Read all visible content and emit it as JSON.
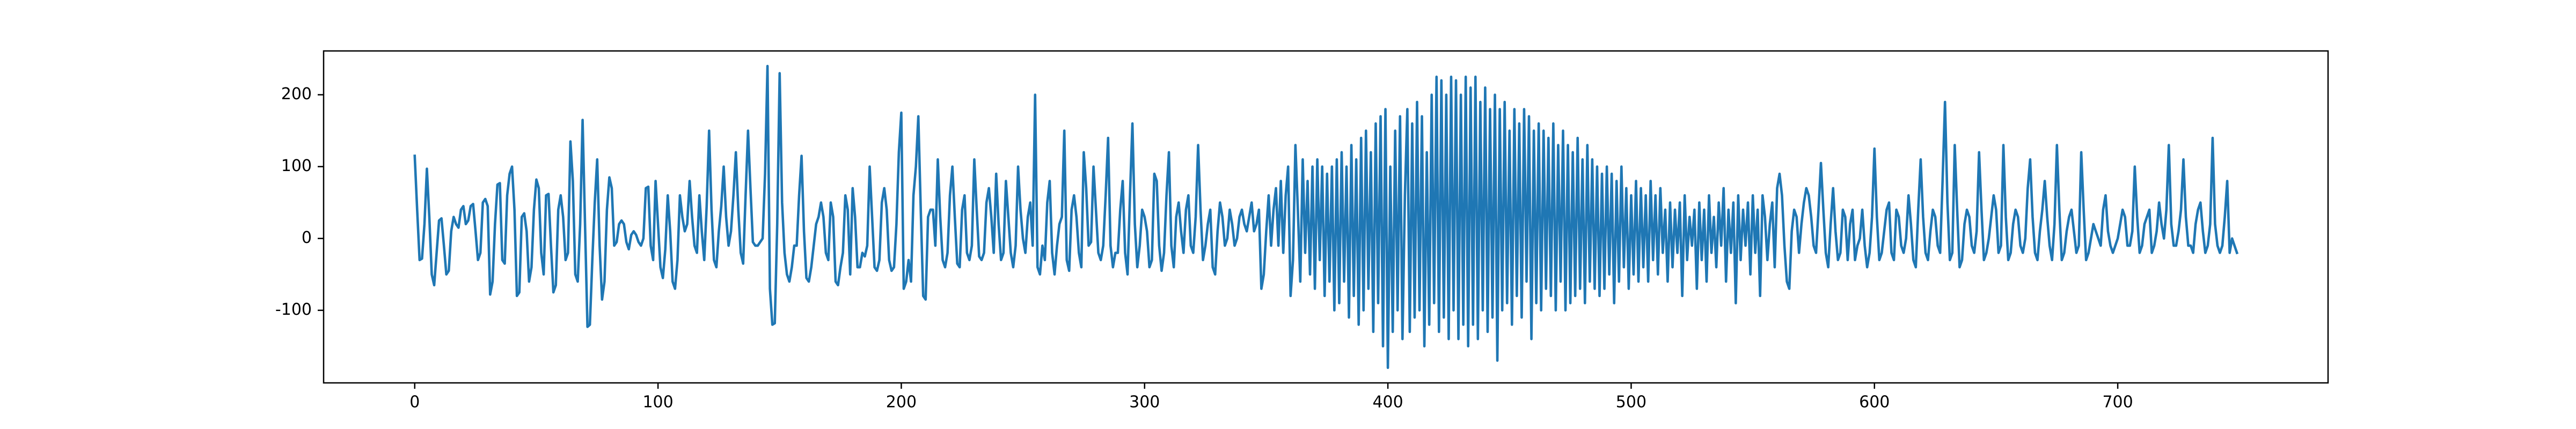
{
  "chart_data": {
    "type": "line",
    "color": "#1f77b4",
    "xlim": [
      -37.45,
      786.45
    ],
    "xticks": [
      0,
      100,
      200,
      300,
      400,
      500,
      600,
      700
    ],
    "ylim": [
      -201,
      261
    ],
    "yticks": [
      -100,
      0,
      100,
      200
    ],
    "grid": false,
    "values": [
      115,
      40,
      -30,
      -28,
      20,
      97,
      30,
      -50,
      -65,
      -20,
      25,
      28,
      -10,
      -50,
      -45,
      10,
      30,
      20,
      15,
      40,
      45,
      20,
      25,
      45,
      48,
      10,
      -30,
      -20,
      50,
      55,
      45,
      -78,
      -60,
      20,
      75,
      77,
      -30,
      -35,
      60,
      90,
      100,
      40,
      -80,
      -75,
      30,
      35,
      10,
      -60,
      -40,
      40,
      82,
      70,
      -20,
      -50,
      60,
      62,
      -10,
      -75,
      -65,
      40,
      60,
      30,
      -30,
      -20,
      135,
      80,
      -50,
      -60,
      20,
      165,
      20,
      -123,
      -120,
      -30,
      50,
      110,
      -10,
      -85,
      -60,
      40,
      85,
      70,
      -10,
      -5,
      20,
      25,
      20,
      -5,
      -15,
      5,
      10,
      5,
      -5,
      -10,
      0,
      70,
      72,
      -10,
      -30,
      80,
      20,
      -40,
      -55,
      -15,
      60,
      10,
      -60,
      -70,
      -30,
      60,
      30,
      10,
      20,
      80,
      30,
      -10,
      -20,
      60,
      10,
      -30,
      45,
      150,
      40,
      -30,
      -40,
      10,
      45,
      100,
      30,
      -10,
      10,
      60,
      120,
      40,
      -20,
      -35,
      60,
      150,
      70,
      -5,
      -10,
      -10,
      -5,
      0,
      90,
      240,
      -70,
      -120,
      -118,
      20,
      230,
      50,
      -20,
      -50,
      -60,
      -40,
      -10,
      -10,
      60,
      115,
      10,
      -55,
      -60,
      -40,
      -10,
      20,
      30,
      50,
      30,
      -20,
      -30,
      50,
      30,
      -60,
      -65,
      -40,
      -20,
      60,
      40,
      -50,
      70,
      30,
      -40,
      -40,
      -20,
      -25,
      -10,
      100,
      30,
      -40,
      -45,
      -30,
      50,
      70,
      40,
      -30,
      -45,
      -40,
      20,
      120,
      175,
      -70,
      -60,
      -30,
      -60,
      60,
      100,
      170,
      40,
      -80,
      -85,
      30,
      40,
      40,
      -10,
      110,
      30,
      -30,
      -40,
      -20,
      60,
      100,
      30,
      -35,
      -40,
      40,
      60,
      -20,
      -30,
      -10,
      110,
      40,
      -25,
      -30,
      -20,
      50,
      70,
      30,
      -20,
      90,
      20,
      -30,
      -20,
      80,
      30,
      -20,
      -40,
      -10,
      100,
      40,
      0,
      -20,
      30,
      50,
      -10,
      200,
      -40,
      -50,
      -10,
      -30,
      50,
      80,
      -20,
      -50,
      -10,
      20,
      30,
      150,
      -30,
      -45,
      40,
      60,
      30,
      -20,
      -40,
      120,
      70,
      -10,
      -5,
      100,
      40,
      -20,
      -30,
      -10,
      60,
      140,
      -10,
      -40,
      -20,
      -20,
      40,
      80,
      -20,
      -50,
      60,
      160,
      20,
      -40,
      -10,
      40,
      30,
      10,
      -40,
      -30,
      90,
      80,
      -10,
      -45,
      -20,
      60,
      120,
      -10,
      -40,
      30,
      50,
      10,
      -20,
      40,
      60,
      -10,
      -20,
      30,
      130,
      40,
      -30,
      -10,
      20,
      40,
      -40,
      -50,
      10,
      50,
      30,
      -10,
      0,
      40,
      20,
      -10,
      0,
      30,
      40,
      20,
      10,
      30,
      50,
      10,
      20,
      40,
      -70,
      -50,
      10,
      60,
      -10,
      40,
      70,
      -10,
      80,
      -20,
      60,
      100,
      -80,
      -30,
      130,
      40,
      -60,
      110,
      -20,
      80,
      -50,
      100,
      -70,
      110,
      -30,
      100,
      -80,
      90,
      -60,
      100,
      -100,
      110,
      -90,
      120,
      -60,
      100,
      -110,
      130,
      -80,
      110,
      -120,
      140,
      -100,
      150,
      -70,
      120,
      -130,
      160,
      -90,
      170,
      -150,
      180,
      -180,
      100,
      -130,
      150,
      -100,
      170,
      -140,
      60,
      180,
      -130,
      160,
      -110,
      190,
      -100,
      170,
      -150,
      120,
      -120,
      200,
      -90,
      225,
      -130,
      220,
      -110,
      200,
      -140,
      225,
      -100,
      220,
      -140,
      200,
      -120,
      225,
      -150,
      210,
      -120,
      225,
      -140,
      190,
      -100,
      210,
      -130,
      180,
      -110,
      200,
      -170,
      180,
      -100,
      190,
      -90,
      150,
      -120,
      180,
      -80,
      160,
      -110,
      180,
      -60,
      170,
      -140,
      150,
      -90,
      160,
      -100,
      150,
      -70,
      140,
      -80,
      160,
      -100,
      130,
      -60,
      150,
      -100,
      130,
      -90,
      120,
      -80,
      140,
      -70,
      110,
      -90,
      130,
      -60,
      110,
      -70,
      100,
      -80,
      90,
      -70,
      100,
      -50,
      90,
      -90,
      80,
      -60,
      100,
      -40,
      70,
      -70,
      60,
      -50,
      80,
      -60,
      70,
      -40,
      60,
      -60,
      80,
      -30,
      60,
      -50,
      70,
      -20,
      40,
      -60,
      50,
      -40,
      40,
      -20,
      50,
      -80,
      60,
      -30,
      30,
      -10,
      40,
      -70,
      50,
      -30,
      40,
      -60,
      60,
      -20,
      30,
      -40,
      50,
      -10,
      70,
      -60,
      40,
      -20,
      50,
      -90,
      60,
      -30,
      40,
      -10,
      50,
      -50,
      60,
      -20,
      40,
      -80,
      60,
      30,
      -30,
      20,
      50,
      -40,
      70,
      90,
      60,
      -10,
      -60,
      -70,
      10,
      40,
      30,
      -20,
      20,
      50,
      70,
      60,
      30,
      -10,
      -20,
      40,
      105,
      40,
      -20,
      -40,
      20,
      70,
      10,
      -30,
      -20,
      40,
      30,
      -30,
      20,
      40,
      -30,
      -10,
      0,
      40,
      -10,
      -40,
      -20,
      30,
      125,
      30,
      -30,
      -20,
      10,
      40,
      50,
      -20,
      -30,
      40,
      30,
      -10,
      -20,
      0,
      60,
      20,
      -30,
      -40,
      40,
      110,
      30,
      -20,
      -30,
      10,
      40,
      30,
      -10,
      -20,
      80,
      190,
      50,
      -30,
      -20,
      130,
      40,
      -40,
      -30,
      20,
      40,
      30,
      -10,
      -20,
      10,
      120,
      40,
      -30,
      -20,
      0,
      30,
      60,
      40,
      -20,
      -10,
      130,
      30,
      -30,
      -20,
      20,
      40,
      30,
      -10,
      -20,
      0,
      70,
      110,
      30,
      -20,
      -30,
      10,
      40,
      80,
      30,
      -10,
      -30,
      20,
      130,
      40,
      -30,
      -20,
      10,
      30,
      40,
      10,
      -20,
      -10,
      120,
      40,
      -30,
      -20,
      0,
      20,
      10,
      0,
      -10,
      40,
      60,
      10,
      -10,
      -20,
      -10,
      0,
      20,
      40,
      30,
      -10,
      -10,
      10,
      100,
      30,
      -20,
      -10,
      20,
      30,
      40,
      -20,
      -10,
      10,
      50,
      20,
      0,
      40,
      130,
      20,
      -10,
      -10,
      10,
      40,
      110,
      30,
      -10,
      -10,
      -20,
      20,
      40,
      50,
      10,
      -20,
      -10,
      20,
      140,
      20,
      -10,
      -20,
      -10,
      30,
      80,
      -20,
      0,
      -10,
      -20
    ]
  }
}
